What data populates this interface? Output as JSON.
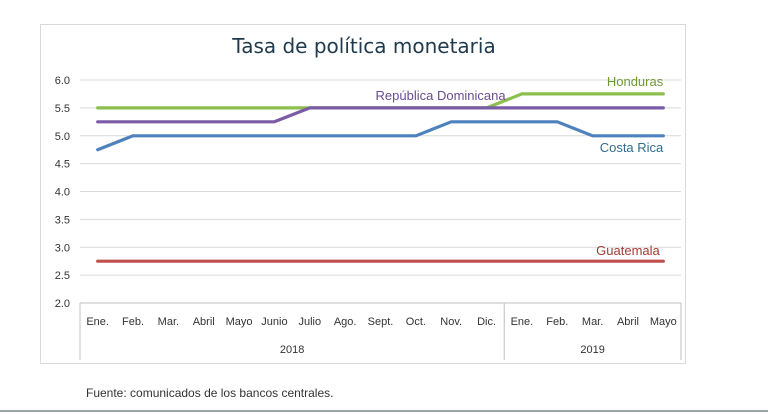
{
  "source_note": "Fuente: comunicados de los bancos centrales.",
  "chart_data": {
    "type": "line",
    "title": "Tasa de política monetaria",
    "xlabel": "",
    "ylabel": "",
    "ylim": [
      2.0,
      6.0
    ],
    "yticks": [
      "2.0",
      "2.5",
      "3.0",
      "3.5",
      "4.0",
      "4.5",
      "5.0",
      "5.5",
      "6.0"
    ],
    "grid": true,
    "categories": [
      "Ene.",
      "Feb.",
      "Mar.",
      "Abril",
      "Mayo",
      "Junio",
      "Julio",
      "Ago.",
      "Sept.",
      "Oct.",
      "Nov.",
      "Dic.",
      "Ene.",
      "Feb.",
      "Mar.",
      "Abril",
      "Mayo"
    ],
    "years": [
      {
        "label": "2018",
        "start": 0,
        "end": 11
      },
      {
        "label": "2019",
        "start": 12,
        "end": 16
      }
    ],
    "series": [
      {
        "name": "Honduras",
        "color": "#8cbf4f",
        "values": [
          5.5,
          5.5,
          5.5,
          5.5,
          5.5,
          5.5,
          5.5,
          5.5,
          5.5,
          5.5,
          5.5,
          5.5,
          5.75,
          5.75,
          5.75,
          5.75,
          5.75
        ]
      },
      {
        "name": "República Dominicana",
        "color": "#7b5ba6",
        "values": [
          5.25,
          5.25,
          5.25,
          5.25,
          5.25,
          5.25,
          5.5,
          5.5,
          5.5,
          5.5,
          5.5,
          5.5,
          5.5,
          5.5,
          5.5,
          5.5,
          5.5
        ]
      },
      {
        "name": "Costa Rica",
        "color": "#4f81bd",
        "values": [
          4.75,
          5.0,
          5.0,
          5.0,
          5.0,
          5.0,
          5.0,
          5.0,
          5.0,
          5.0,
          5.25,
          5.25,
          5.25,
          5.25,
          5.0,
          5.0,
          5.0
        ]
      },
      {
        "name": "Guatemala",
        "color": "#c0504d",
        "values": [
          2.75,
          2.75,
          2.75,
          2.75,
          2.75,
          2.75,
          2.75,
          2.75,
          2.75,
          2.75,
          2.75,
          2.75,
          2.75,
          2.75,
          2.75,
          2.75,
          2.75
        ]
      }
    ],
    "label_colors": {
      "Honduras": "#6e9a36",
      "República Dominicana": "#6a4c94",
      "Costa Rica": "#2e6e8e",
      "Guatemala": "#a23b38"
    }
  }
}
